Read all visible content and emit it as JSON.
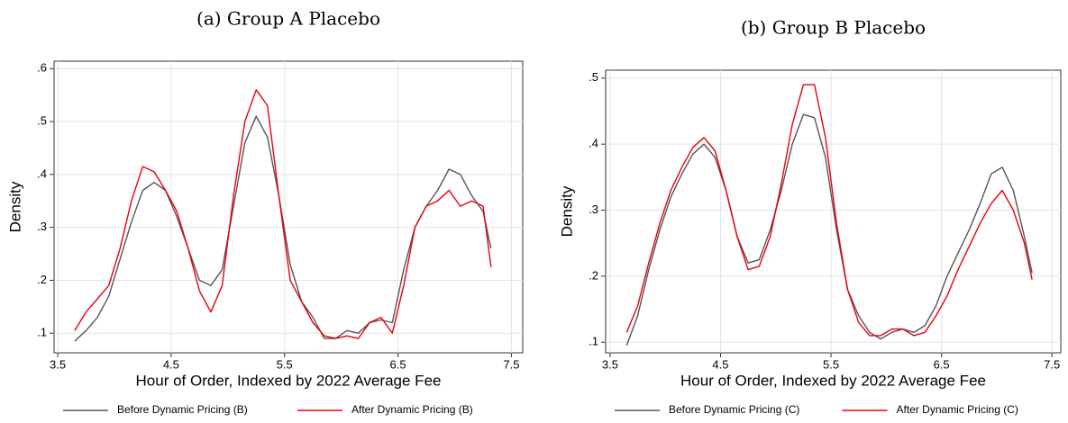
{
  "chart_data": [
    {
      "type": "line",
      "title": "(a) Group A Placebo",
      "xlabel": "Hour of Order, Indexed by 2022 Average Fee",
      "ylabel": "Density",
      "x": [
        3.65,
        3.75,
        3.85,
        3.95,
        4.05,
        4.15,
        4.25,
        4.35,
        4.45,
        4.55,
        4.65,
        4.75,
        4.85,
        4.95,
        5.05,
        5.15,
        5.25,
        5.35,
        5.45,
        5.55,
        5.65,
        5.75,
        5.85,
        5.95,
        6.05,
        6.15,
        6.25,
        6.35,
        6.45,
        6.55,
        6.65,
        6.75,
        6.85,
        6.95,
        7.05,
        7.15,
        7.25,
        7.32
      ],
      "series": [
        {
          "name": "Before Dynamic Pricing (B)",
          "color": "#555555",
          "values": [
            0.085,
            0.105,
            0.13,
            0.17,
            0.24,
            0.31,
            0.37,
            0.385,
            0.37,
            0.32,
            0.26,
            0.2,
            0.19,
            0.22,
            0.34,
            0.46,
            0.51,
            0.47,
            0.36,
            0.23,
            0.16,
            0.13,
            0.09,
            0.09,
            0.105,
            0.1,
            0.12,
            0.125,
            0.12,
            0.22,
            0.3,
            0.34,
            0.37,
            0.41,
            0.4,
            0.36,
            0.33,
            0.26
          ]
        },
        {
          "name": "After Dynamic Pricing (B)",
          "color": "#e8000b",
          "values": [
            0.105,
            0.14,
            0.165,
            0.19,
            0.26,
            0.35,
            0.415,
            0.405,
            0.37,
            0.33,
            0.26,
            0.18,
            0.14,
            0.19,
            0.36,
            0.5,
            0.56,
            0.53,
            0.36,
            0.2,
            0.16,
            0.12,
            0.095,
            0.09,
            0.095,
            0.09,
            0.12,
            0.13,
            0.1,
            0.19,
            0.3,
            0.34,
            0.35,
            0.37,
            0.34,
            0.35,
            0.34,
            0.225
          ]
        }
      ],
      "xlim": [
        3.468,
        7.6
      ],
      "xticks": [
        3.5,
        4.5,
        5.5,
        6.5,
        7.5
      ],
      "ylim": [
        0.063,
        0.614
      ],
      "yticks": [
        {
          "value": 0.1,
          "label": ".1"
        },
        {
          "value": 0.2,
          "label": ".2"
        },
        {
          "value": 0.3,
          "label": ".3"
        },
        {
          "value": 0.4,
          "label": ".4"
        },
        {
          "value": 0.5,
          "label": ".5"
        },
        {
          "value": 0.6,
          "label": ".6"
        }
      ],
      "grid": true
    },
    {
      "type": "line",
      "title": "(b) Group B Placebo",
      "xlabel": "Hour of Order, Indexed by 2022 Average Fee",
      "ylabel": "Density",
      "x": [
        3.65,
        3.75,
        3.85,
        3.95,
        4.05,
        4.15,
        4.25,
        4.35,
        4.45,
        4.55,
        4.65,
        4.75,
        4.85,
        4.95,
        5.05,
        5.15,
        5.25,
        5.35,
        5.45,
        5.55,
        5.65,
        5.75,
        5.85,
        5.95,
        6.05,
        6.15,
        6.25,
        6.35,
        6.45,
        6.55,
        6.65,
        6.75,
        6.85,
        6.95,
        7.05,
        7.15,
        7.25,
        7.32
      ],
      "series": [
        {
          "name": "Before Dynamic Pricing (C)",
          "color": "#555555",
          "values": [
            0.095,
            0.14,
            0.21,
            0.27,
            0.32,
            0.355,
            0.385,
            0.4,
            0.38,
            0.33,
            0.26,
            0.22,
            0.225,
            0.27,
            0.33,
            0.4,
            0.445,
            0.44,
            0.38,
            0.27,
            0.18,
            0.14,
            0.115,
            0.105,
            0.115,
            0.12,
            0.115,
            0.125,
            0.155,
            0.2,
            0.235,
            0.27,
            0.31,
            0.355,
            0.365,
            0.33,
            0.26,
            0.205
          ]
        },
        {
          "name": "After Dynamic Pricing (C)",
          "color": "#e8000b",
          "values": [
            0.115,
            0.155,
            0.22,
            0.28,
            0.33,
            0.365,
            0.395,
            0.41,
            0.39,
            0.33,
            0.26,
            0.21,
            0.215,
            0.26,
            0.34,
            0.43,
            0.49,
            0.49,
            0.41,
            0.28,
            0.18,
            0.13,
            0.11,
            0.11,
            0.12,
            0.12,
            0.11,
            0.115,
            0.14,
            0.17,
            0.21,
            0.245,
            0.28,
            0.31,
            0.33,
            0.3,
            0.25,
            0.195
          ]
        }
      ],
      "xlim": [
        3.46,
        7.58
      ],
      "xticks": [
        3.5,
        4.5,
        5.5,
        6.5,
        7.5
      ],
      "ylim": [
        0.084,
        0.512
      ],
      "yticks": [
        {
          "value": 0.1,
          "label": ".1"
        },
        {
          "value": 0.2,
          "label": ".2"
        },
        {
          "value": 0.3,
          "label": ".3"
        },
        {
          "value": 0.4,
          "label": ".4"
        },
        {
          "value": 0.5,
          "label": ".5"
        }
      ],
      "grid": true
    }
  ]
}
